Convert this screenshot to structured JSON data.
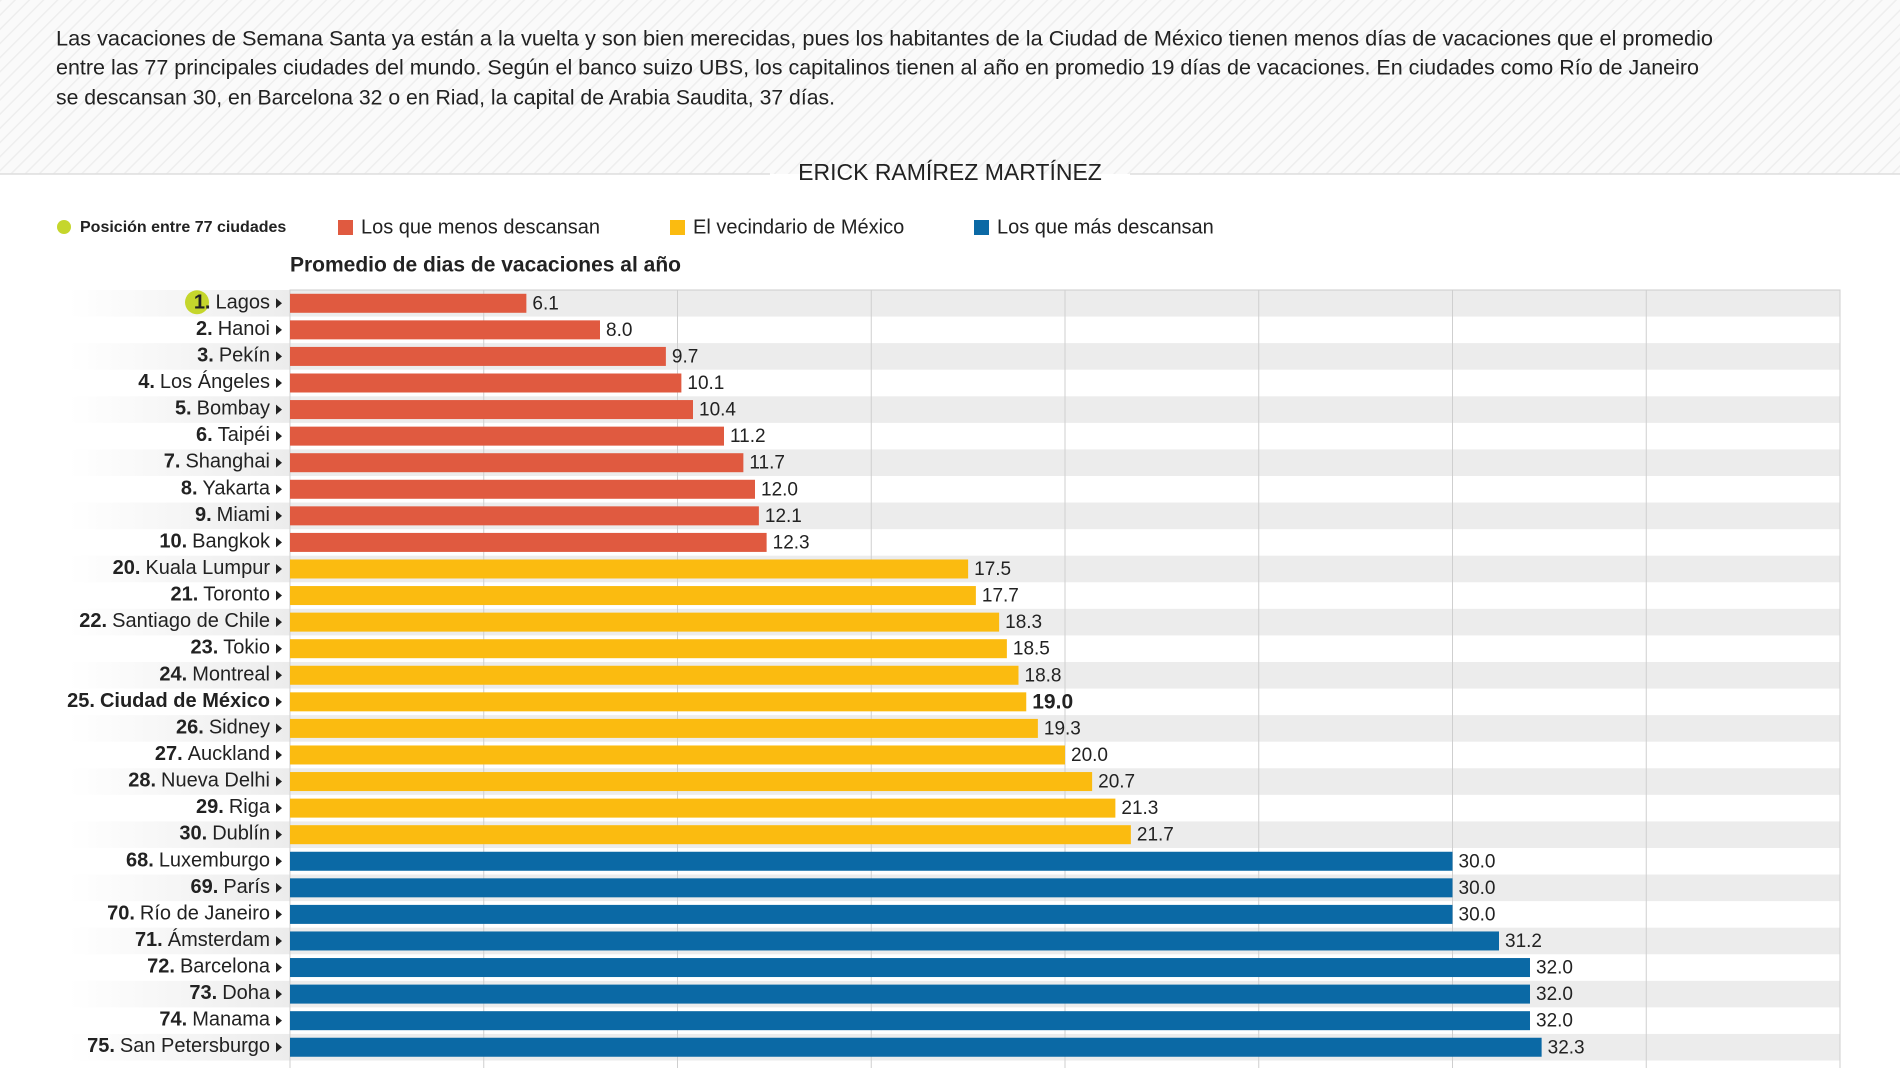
{
  "chart_data": {
    "type": "bar",
    "intro": [
      "Las vacaciones de Semana Santa ya están a la vuelta y son bien merecidas, pues los habitantes de la Ciudad de México tienen menos días de vacaciones que el promedio",
      "entre las 77 principales ciudades del mundo. Según el banco suizo UBS, los capitalinos tienen al año en promedio 19 días de vacaciones. En ciudades como Río de Janeiro",
      "se descansan 30, en Barcelona 32 o en Riad, la capital de Arabia Saudita, 37 días."
    ],
    "author": "ERICK RAMÍREZ MARTÍNEZ",
    "rank_legend": {
      "label": "Posición entre 77 ciudades",
      "color": "#c5d62c"
    },
    "subtitle": "Promedio de dias de vacaciones al año",
    "xlim": [
      0,
      40
    ],
    "xticks": [
      0,
      5,
      10,
      15,
      20,
      25,
      30,
      35,
      40
    ],
    "grid": true,
    "series": [
      {
        "name": "Los que menos descansan",
        "color": "#e05a40",
        "ranks": [
          "1.",
          "2.",
          "3.",
          "4.",
          "5.",
          "6.",
          "7.",
          "8.",
          "9.",
          "10."
        ],
        "categories": [
          "Lagos",
          "Hanoi",
          "Pekín",
          "Los Ángeles",
          "Bombay",
          "Taipéi",
          "Shanghai",
          "Yakarta",
          "Miami",
          "Bangkok"
        ],
        "values": [
          6.1,
          8.0,
          9.7,
          10.1,
          10.4,
          11.2,
          11.7,
          12.0,
          12.1,
          12.3
        ],
        "value_labels": [
          "6.1",
          "8.0",
          "9.7",
          "10.1",
          "10.4",
          "11.2",
          "11.7",
          "12.0",
          "12.1",
          "12.3"
        ]
      },
      {
        "name": "El vecindario de México",
        "color": "#fbbb10",
        "emphasis_index": 5,
        "ranks": [
          "20.",
          "21.",
          "22.",
          "23.",
          "24.",
          "25.",
          "26.",
          "27.",
          "28.",
          "29.",
          "30."
        ],
        "categories": [
          "Kuala Lumpur",
          "Toronto",
          "Santiago de Chile",
          "Tokio",
          "Montreal",
          "Ciudad de México",
          "Sidney",
          "Auckland",
          "Nueva Delhi",
          "Riga",
          "Dublín"
        ],
        "values": [
          17.5,
          17.7,
          18.3,
          18.5,
          18.8,
          19.0,
          19.3,
          20.0,
          20.7,
          21.3,
          21.7
        ],
        "value_labels": [
          "17.5",
          "17.7",
          "18.3",
          "18.5",
          "18.8",
          "19.0",
          "19.3",
          "20.0",
          "20.7",
          "21.3",
          "21.7"
        ]
      },
      {
        "name": "Los que más descansan",
        "color": "#0b69a5",
        "ranks": [
          "68.",
          "69.",
          "70.",
          "71.",
          "72.",
          "73.",
          "74.",
          "75."
        ],
        "categories": [
          "Luxemburgo",
          "París",
          "Río de Janeiro",
          "Ámsterdam",
          "Barcelona",
          "Doha",
          "Manama",
          "San Petersburgo"
        ],
        "values": [
          30.0,
          30.0,
          30.0,
          31.2,
          32.0,
          32.0,
          32.0,
          32.3
        ],
        "value_labels": [
          "30.0",
          "30.0",
          "30.0",
          "31.2",
          "32.0",
          "32.0",
          "32.0",
          "32.3"
        ]
      }
    ]
  }
}
